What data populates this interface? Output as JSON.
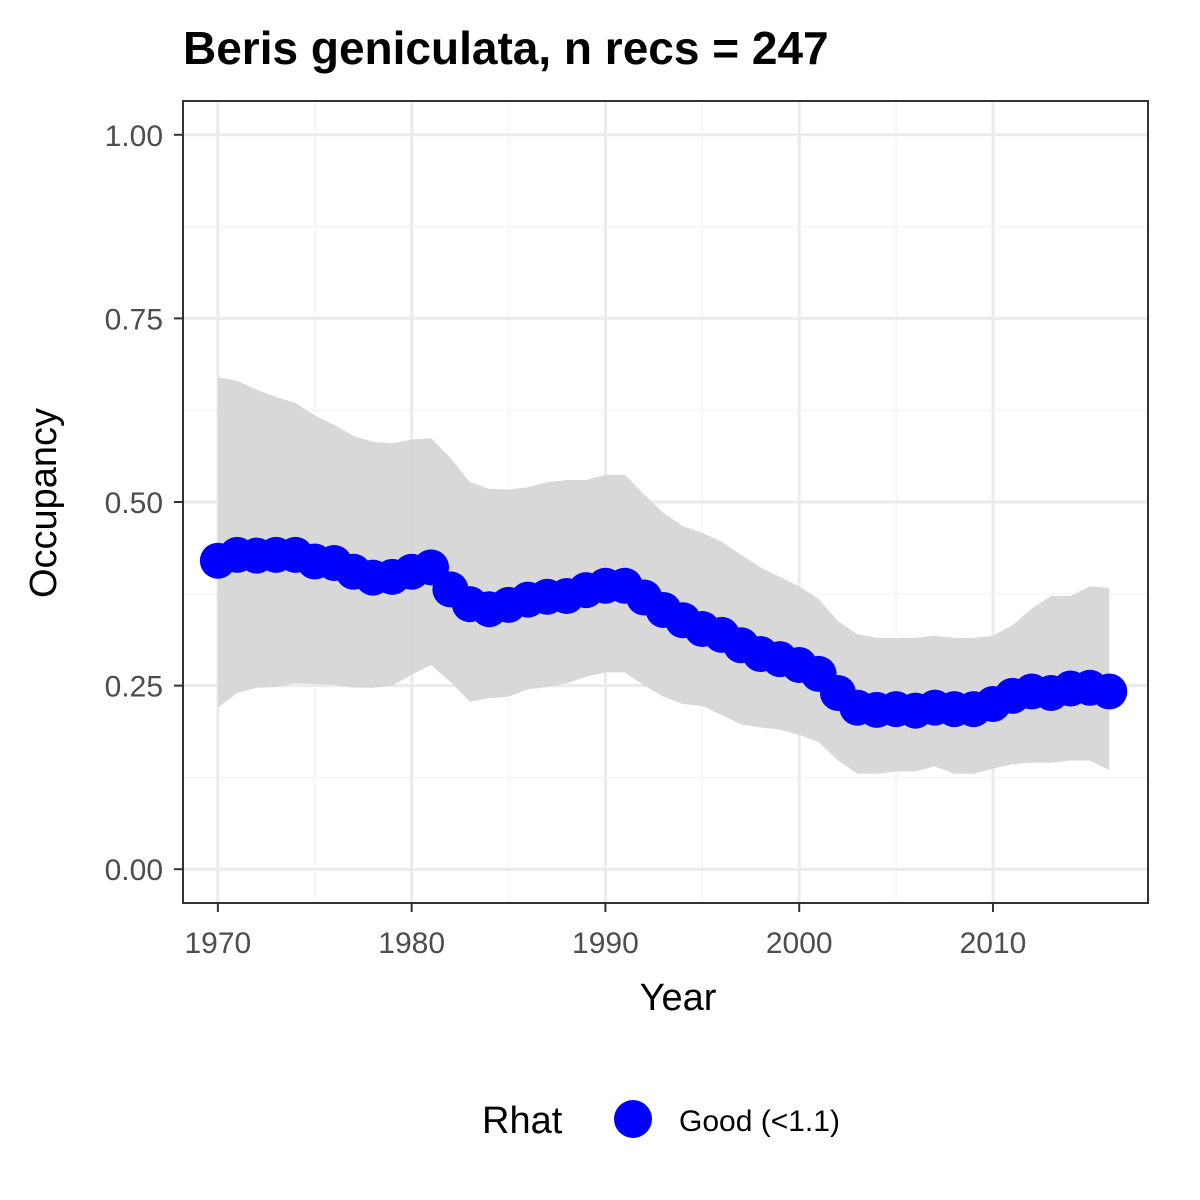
{
  "chart_data": {
    "type": "line",
    "title": "Beris geniculata, n recs = 247",
    "xlabel": "Year",
    "ylabel": "Occupancy",
    "xlim": [
      1968.2,
      2018.0
    ],
    "ylim": [
      -0.046,
      1.046
    ],
    "x_ticks": [
      1970,
      1980,
      1990,
      2000,
      2010
    ],
    "x_tick_labels": [
      "1970",
      "1980",
      "1990",
      "2000",
      "2010"
    ],
    "y_ticks": [
      0,
      0.25,
      0.5,
      0.75,
      1.0
    ],
    "y_tick_labels": [
      "0.00",
      "0.25",
      "0.50",
      "0.75",
      "1.00"
    ],
    "grid": true,
    "x": [
      1970,
      1971,
      1972,
      1973,
      1974,
      1975,
      1976,
      1977,
      1978,
      1979,
      1980,
      1981,
      1982,
      1983,
      1984,
      1985,
      1986,
      1987,
      1988,
      1989,
      1990,
      1991,
      1992,
      1993,
      1994,
      1995,
      1996,
      1997,
      1998,
      1999,
      2000,
      2001,
      2002,
      2003,
      2004,
      2005,
      2006,
      2007,
      2008,
      2009,
      2010,
      2011,
      2012,
      2013,
      2014,
      2015,
      2016
    ],
    "series": [
      {
        "values": [
          0.42,
          0.428,
          0.427,
          0.428,
          0.428,
          0.419,
          0.417,
          0.405,
          0.397,
          0.398,
          0.405,
          0.411,
          0.381,
          0.361,
          0.354,
          0.36,
          0.367,
          0.371,
          0.372,
          0.38,
          0.386,
          0.386,
          0.37,
          0.353,
          0.339,
          0.327,
          0.319,
          0.305,
          0.293,
          0.286,
          0.278,
          0.266,
          0.24,
          0.22,
          0.217,
          0.218,
          0.216,
          0.22,
          0.218,
          0.218,
          0.225,
          0.236,
          0.242,
          0.24,
          0.246,
          0.247,
          0.242
        ],
        "lower": [
          0.22,
          0.24,
          0.247,
          0.248,
          0.253,
          0.252,
          0.251,
          0.247,
          0.247,
          0.25,
          0.265,
          0.278,
          0.255,
          0.228,
          0.233,
          0.235,
          0.245,
          0.248,
          0.253,
          0.262,
          0.268,
          0.268,
          0.25,
          0.235,
          0.225,
          0.222,
          0.21,
          0.197,
          0.193,
          0.19,
          0.183,
          0.173,
          0.148,
          0.13,
          0.13,
          0.133,
          0.133,
          0.14,
          0.13,
          0.13,
          0.137,
          0.143,
          0.145,
          0.145,
          0.148,
          0.148,
          0.135
        ],
        "upper": [
          0.67,
          0.665,
          0.653,
          0.643,
          0.635,
          0.618,
          0.605,
          0.59,
          0.582,
          0.58,
          0.585,
          0.587,
          0.56,
          0.527,
          0.518,
          0.517,
          0.52,
          0.527,
          0.53,
          0.53,
          0.537,
          0.537,
          0.51,
          0.485,
          0.467,
          0.458,
          0.446,
          0.428,
          0.411,
          0.398,
          0.385,
          0.368,
          0.338,
          0.32,
          0.315,
          0.315,
          0.315,
          0.318,
          0.315,
          0.315,
          0.318,
          0.332,
          0.355,
          0.372,
          0.372,
          0.385,
          0.383
        ]
      }
    ],
    "colors": {
      "points": "#0000ff",
      "ribbon": "#d6d6d6",
      "grid_major": "#ebebeb",
      "grid_minor": "#f5f5f5",
      "panel_border": "#333333"
    },
    "legend": {
      "position": "bottom",
      "title": "Rhat",
      "items": [
        {
          "label": "Good (<1.1)",
          "color": "#0000ff"
        }
      ]
    }
  }
}
